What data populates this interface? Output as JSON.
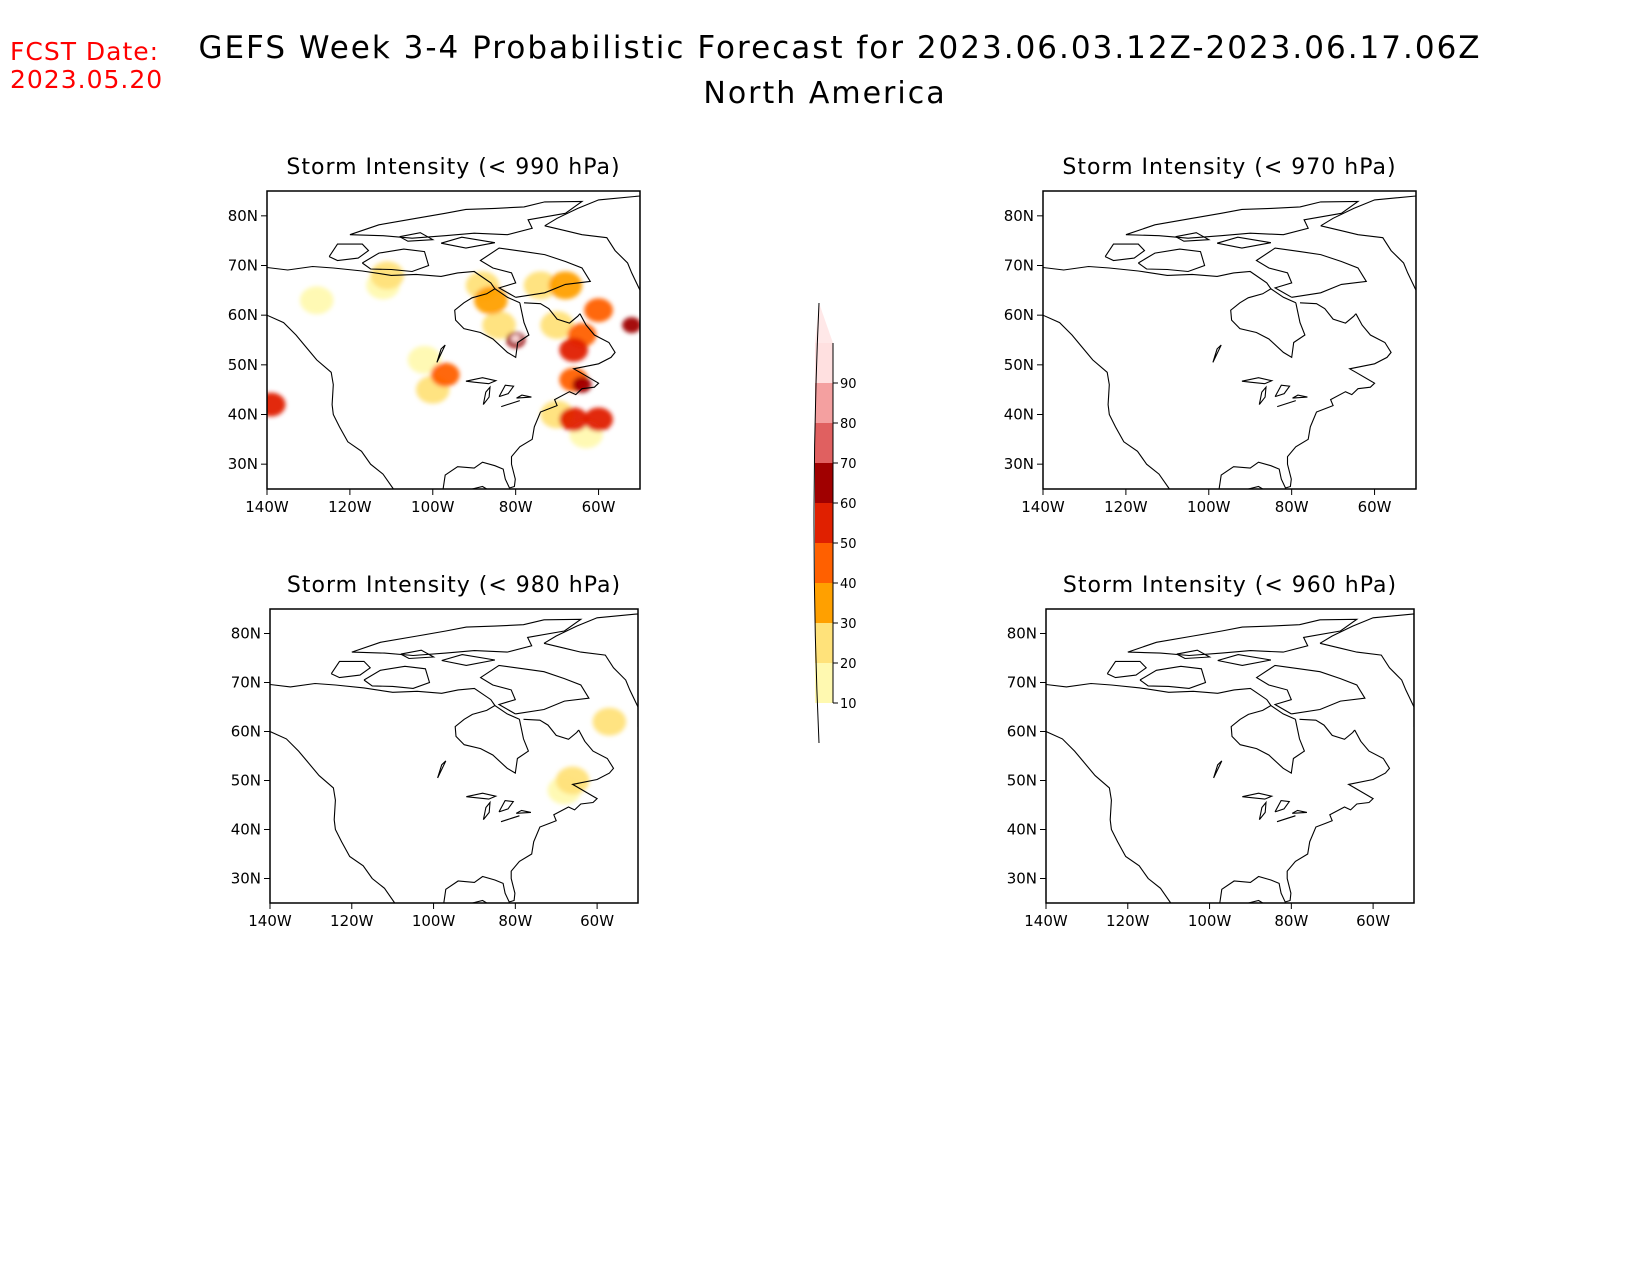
{
  "header": {
    "fcst_label": "FCST Date:",
    "fcst_date": "2023.05.20",
    "title": "GEFS Week 3-4 Probabilistic Forecast for 2023.06.03.12Z-2023.06.17.06Z",
    "subtitle": "North America"
  },
  "axes": {
    "lat_ticks": [
      80,
      70,
      60,
      50,
      40,
      30
    ],
    "lat_labels": [
      "80N",
      "70N",
      "60N",
      "50N",
      "40N",
      "30N"
    ],
    "lon_ticks": [
      -140,
      -120,
      -100,
      -80,
      -60
    ],
    "lon_labels": [
      "140W",
      "120W",
      "100W",
      "80W",
      "60W"
    ],
    "lon_range": [
      -140,
      -50
    ],
    "lat_range": [
      25,
      85
    ]
  },
  "panels": [
    {
      "id": "p990",
      "title": "Storm Intensity (< 990 hPa)",
      "regions": [
        {
          "lon": -111,
          "lat": 68,
          "level": 20
        },
        {
          "lon": -112,
          "lat": 66,
          "level": 10
        },
        {
          "lon": -128,
          "lat": 63,
          "level": 10
        },
        {
          "lon": -88,
          "lat": 66,
          "level": 20
        },
        {
          "lon": -86,
          "lat": 63,
          "level": 30
        },
        {
          "lon": -80,
          "lat": 55,
          "level": 60
        },
        {
          "lon": -80,
          "lat": 55.3,
          "level": 90
        },
        {
          "lon": -84,
          "lat": 58,
          "level": 20
        },
        {
          "lon": -74,
          "lat": 66,
          "level": 20
        },
        {
          "lon": -68,
          "lat": 66,
          "level": 30
        },
        {
          "lon": -66,
          "lat": 53,
          "level": 50
        },
        {
          "lon": -64,
          "lat": 56,
          "level": 40
        },
        {
          "lon": -60,
          "lat": 61,
          "level": 40
        },
        {
          "lon": -52,
          "lat": 58,
          "level": 60
        },
        {
          "lon": -70,
          "lat": 58,
          "level": 20
        },
        {
          "lon": -66,
          "lat": 47,
          "level": 40
        },
        {
          "lon": -64,
          "lat": 46,
          "level": 60
        },
        {
          "lon": -97,
          "lat": 48,
          "level": 40
        },
        {
          "lon": -100,
          "lat": 45,
          "level": 20
        },
        {
          "lon": -102,
          "lat": 51,
          "level": 10
        },
        {
          "lon": -66,
          "lat": 39,
          "level": 50
        },
        {
          "lon": -60,
          "lat": 39,
          "level": 50
        },
        {
          "lon": -63,
          "lat": 36,
          "level": 10
        },
        {
          "lon": -70,
          "lat": 40,
          "level": 20
        },
        {
          "lon": -139,
          "lat": 42,
          "level": 50
        }
      ]
    },
    {
      "id": "p970",
      "title": "Storm Intensity (< 970 hPa)",
      "regions": []
    },
    {
      "id": "p980",
      "title": "Storm Intensity (< 980 hPa)",
      "regions": [
        {
          "lon": -57,
          "lat": 62,
          "level": 20
        },
        {
          "lon": -66,
          "lat": 50,
          "level": 20
        },
        {
          "lon": -68,
          "lat": 48,
          "level": 10
        }
      ]
    },
    {
      "id": "p960",
      "title": "Storm Intensity (< 960 hPa)",
      "regions": []
    }
  ],
  "colorbar": {
    "levels": [
      10,
      20,
      30,
      40,
      50,
      60,
      70,
      80,
      90
    ],
    "labels": [
      "10",
      "20",
      "30",
      "40",
      "50",
      "60",
      "70",
      "80",
      "90"
    ],
    "colors": [
      "#fff9b0",
      "#ffe27a",
      "#ffa000",
      "#ff6000",
      "#e02000",
      "#a00000",
      "#e06060",
      "#f4a0a0",
      "#ffe0e0"
    ]
  }
}
